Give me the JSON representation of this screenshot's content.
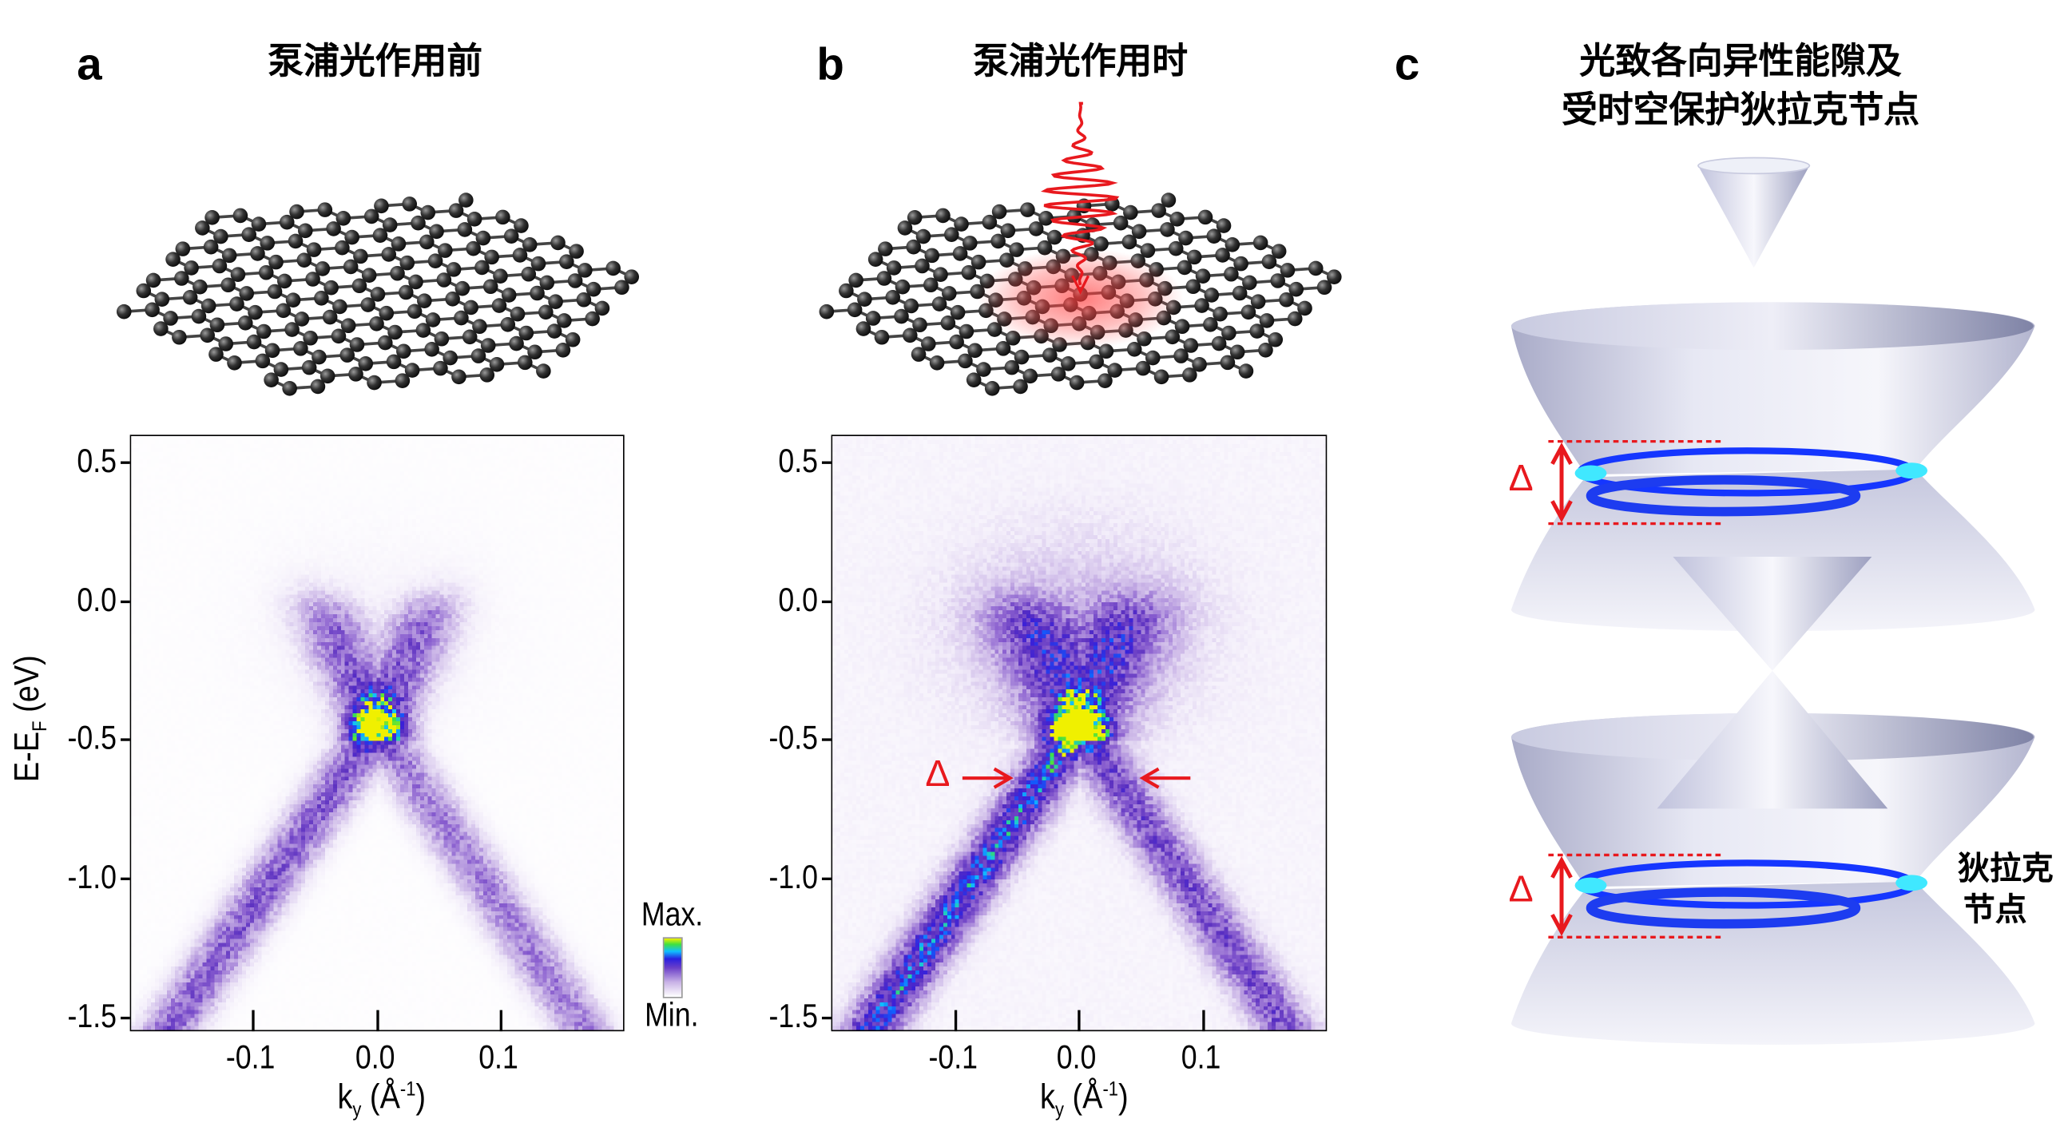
{
  "panels": {
    "a": {
      "letter": "a",
      "title": "泵浦光作用前"
    },
    "b": {
      "letter": "b",
      "title": "泵浦光作用时"
    },
    "c": {
      "letter": "c",
      "title_line1": "光致各向异性能隙及",
      "title_line2": "受时空保护狄拉克节点"
    }
  },
  "axes": {
    "ylabel_main": "E-E",
    "ylabel_sub": "F",
    "ylabel_unit": " (eV)",
    "xlabel_main": "k",
    "xlabel_sub": "y",
    "xlabel_unit_open": " (Å",
    "xlabel_sup": "-1",
    "xlabel_unit_close": ")",
    "yticks": [
      "0.5",
      "0.0",
      "-0.5",
      "-1.0",
      "-1.5"
    ],
    "xticks": [
      "-0.1",
      "0.0",
      "0.1"
    ]
  },
  "colorbar": {
    "max_label": "Max.",
    "min_label": "Min."
  },
  "annotations": {
    "gap_symbol": "Δ",
    "dirac_node_line1": "狄拉克",
    "dirac_node_line2": "节点"
  },
  "colors": {
    "accent_red": "#e8191e",
    "band_purple": "#6a3fc8",
    "ring_blue": "#1536ff",
    "ring_cyan": "#20e0ff"
  },
  "chart_data": [
    {
      "type": "heatmap",
      "panel": "a",
      "xlabel": "ky (Å-1)",
      "ylabel": "E-EF (eV)",
      "xlim": [
        -0.2,
        0.2
      ],
      "ylim": [
        -1.55,
        0.6
      ],
      "xticks": [
        -0.1,
        0.0,
        0.1
      ],
      "yticks": [
        0.5,
        0.0,
        -0.5,
        -1.0,
        -1.5
      ],
      "colorbar": [
        "Min.",
        "Max."
      ],
      "colormap": [
        "#ffffff",
        "#c9b3e6",
        "#6a3fc8",
        "#2a20e0",
        "#10c0ff",
        "#40e040",
        "#f0f000"
      ]
    },
    {
      "type": "heatmap",
      "panel": "b",
      "xlabel": "ky (Å-1)",
      "ylabel": "",
      "xlim": [
        -0.2,
        0.2
      ],
      "ylim": [
        -1.55,
        0.6
      ],
      "xticks": [
        -0.1,
        0.0,
        0.1
      ],
      "yticks": [
        0.5,
        0.0,
        -0.5,
        -1.0,
        -1.5
      ],
      "annotation": {
        "text": "Δ",
        "energy": -0.63
      }
    }
  ]
}
